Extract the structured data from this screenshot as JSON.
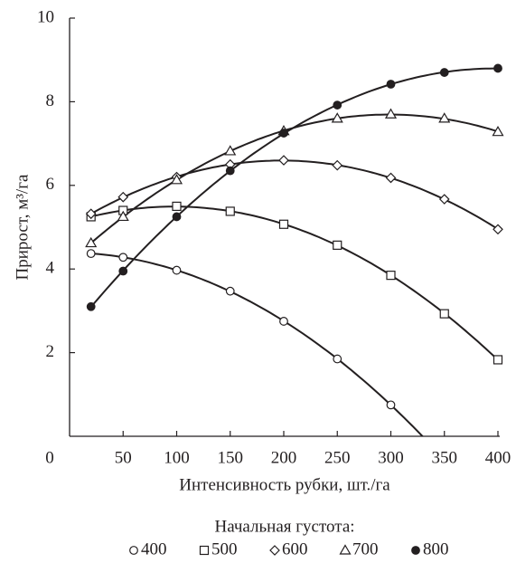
{
  "chart_data": {
    "type": "line",
    "x_label": "Интенсивность рубки, шт./га",
    "y_label": "Прирост, м³/га",
    "legend_title": "Начальная густота:",
    "x": [
      20,
      50,
      100,
      150,
      200,
      250,
      300,
      350,
      400
    ],
    "xlim": [
      0,
      400
    ],
    "ylim": [
      0,
      10
    ],
    "xticks": [
      0,
      50,
      100,
      150,
      200,
      250,
      300,
      350,
      400
    ],
    "yticks": [
      2,
      4,
      6,
      8,
      10
    ],
    "grid": false,
    "series": [
      {
        "name": "400",
        "color": "#231f20",
        "marker": "circle",
        "filled": false,
        "values": [
          4.37,
          4.28,
          3.97,
          3.47,
          2.75,
          1.85,
          0.75,
          null,
          null
        ]
      },
      {
        "name": "500",
        "color": "#231f20",
        "marker": "square",
        "filled": false,
        "values": [
          5.25,
          5.4,
          5.5,
          5.38,
          5.07,
          4.57,
          3.85,
          2.93,
          1.83
        ]
      },
      {
        "name": "600",
        "color": "#231f20",
        "marker": "diamond",
        "filled": false,
        "values": [
          5.32,
          5.72,
          6.2,
          6.5,
          6.6,
          6.48,
          6.18,
          5.67,
          4.95
        ]
      },
      {
        "name": "700",
        "color": "#231f20",
        "marker": "triangle",
        "filled": false,
        "values": [
          4.62,
          5.25,
          6.13,
          6.82,
          7.3,
          7.6,
          7.7,
          7.6,
          7.28
        ]
      },
      {
        "name": "800",
        "color": "#231f20",
        "marker": "circle",
        "filled": true,
        "values": [
          3.1,
          3.95,
          5.25,
          6.35,
          7.25,
          7.92,
          8.42,
          8.7,
          8.8
        ]
      }
    ]
  }
}
